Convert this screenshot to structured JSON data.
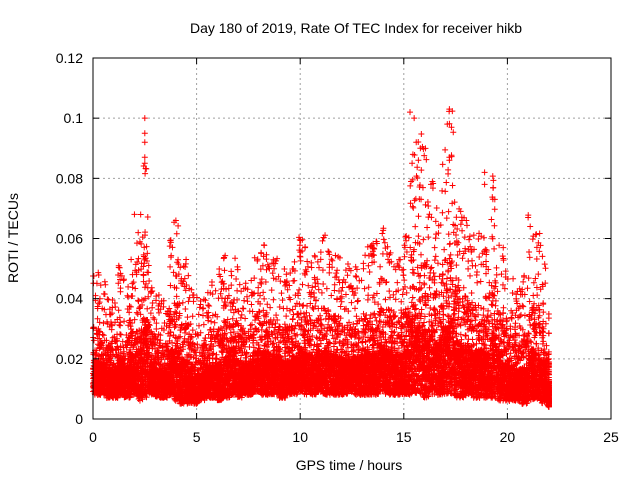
{
  "chart_data": {
    "type": "scatter",
    "title": "Day 180 of 2019, Rate Of TEC Index for receiver hikb",
    "xlabel": "GPS time / hours",
    "ylabel": "ROTI / TECUs",
    "xlim": [
      0,
      25
    ],
    "ylim": [
      0,
      0.12
    ],
    "xticks": [
      0,
      5,
      10,
      15,
      20,
      25
    ],
    "xtick_labels": [
      "0",
      "5",
      "10",
      "15",
      "20",
      "25"
    ],
    "yticks": [
      0,
      0.02,
      0.04,
      0.06,
      0.08,
      0.1,
      0.12
    ],
    "ytick_labels": [
      "0",
      "0.02",
      "0.04",
      "0.06",
      "0.08",
      "0.1",
      "0.12"
    ],
    "grid": true,
    "marker": "plus",
    "color": "#ff0000",
    "data_range_hours": [
      0,
      22
    ],
    "series": [
      {
        "name": "ROTI",
        "x": [
          0.0,
          0.3,
          0.6,
          0.9,
          1.2,
          1.5,
          1.8,
          2.1,
          2.4,
          2.7,
          3.0,
          3.3,
          3.6,
          3.9,
          4.2,
          4.5,
          4.8,
          5.1,
          5.4,
          5.7,
          6.0,
          6.3,
          6.6,
          6.9,
          7.2,
          7.5,
          7.8,
          8.1,
          8.4,
          8.7,
          9.0,
          9.3,
          9.6,
          9.9,
          10.2,
          10.5,
          10.8,
          11.1,
          11.4,
          11.7,
          12.0,
          12.3,
          12.6,
          12.9,
          13.2,
          13.5,
          13.8,
          14.1,
          14.4,
          14.7,
          15.0,
          15.3,
          15.6,
          15.9,
          16.2,
          16.5,
          16.8,
          17.1,
          17.4,
          17.7,
          18.0,
          18.3,
          18.6,
          18.9,
          19.2,
          19.5,
          19.8,
          20.1,
          20.4,
          20.7,
          21.0,
          21.3,
          21.6,
          21.9
        ],
        "y_low": [
          0.008,
          0.008,
          0.007,
          0.007,
          0.008,
          0.007,
          0.008,
          0.006,
          0.007,
          0.008,
          0.007,
          0.007,
          0.008,
          0.006,
          0.005,
          0.005,
          0.005,
          0.006,
          0.007,
          0.007,
          0.006,
          0.007,
          0.008,
          0.007,
          0.008,
          0.008,
          0.009,
          0.008,
          0.008,
          0.008,
          0.007,
          0.008,
          0.008,
          0.009,
          0.008,
          0.008,
          0.009,
          0.008,
          0.008,
          0.008,
          0.008,
          0.009,
          0.008,
          0.008,
          0.008,
          0.008,
          0.009,
          0.008,
          0.008,
          0.008,
          0.008,
          0.008,
          0.008,
          0.007,
          0.008,
          0.008,
          0.008,
          0.008,
          0.007,
          0.007,
          0.008,
          0.007,
          0.007,
          0.007,
          0.007,
          0.006,
          0.006,
          0.006,
          0.006,
          0.005,
          0.006,
          0.006,
          0.005,
          0.004
        ],
        "y_high": [
          0.05,
          0.046,
          0.04,
          0.044,
          0.052,
          0.044,
          0.054,
          0.068,
          0.1,
          0.046,
          0.042,
          0.04,
          0.062,
          0.066,
          0.055,
          0.048,
          0.042,
          0.04,
          0.044,
          0.046,
          0.05,
          0.056,
          0.064,
          0.052,
          0.046,
          0.048,
          0.058,
          0.06,
          0.052,
          0.054,
          0.05,
          0.05,
          0.054,
          0.062,
          0.058,
          0.055,
          0.06,
          0.062,
          0.056,
          0.054,
          0.05,
          0.052,
          0.054,
          0.056,
          0.058,
          0.06,
          0.064,
          0.06,
          0.056,
          0.058,
          0.062,
          0.103,
          0.095,
          0.09,
          0.085,
          0.072,
          0.09,
          0.103,
          0.075,
          0.07,
          0.066,
          0.062,
          0.065,
          0.06,
          0.082,
          0.062,
          0.055,
          0.048,
          0.044,
          0.048,
          0.068,
          0.062,
          0.055,
          0.035
        ],
        "outliers": [
          [
            2.5,
            0.1
          ],
          [
            2.5,
            0.095
          ],
          [
            2.5,
            0.092
          ],
          [
            2.5,
            0.087
          ],
          [
            2.5,
            0.085
          ],
          [
            2.0,
            0.068
          ],
          [
            4.0,
            0.066
          ],
          [
            15.3,
            0.102
          ],
          [
            15.5,
            0.1
          ],
          [
            15.6,
            0.092
          ],
          [
            15.4,
            0.085
          ],
          [
            15.8,
            0.09
          ],
          [
            17.2,
            0.103
          ],
          [
            17.1,
            0.098
          ],
          [
            17.3,
            0.097
          ],
          [
            17.2,
            0.087
          ],
          [
            17.2,
            0.086
          ],
          [
            18.9,
            0.082
          ],
          [
            18.9,
            0.078
          ],
          [
            21.0,
            0.067
          ],
          [
            21.1,
            0.064
          ]
        ]
      }
    ]
  }
}
